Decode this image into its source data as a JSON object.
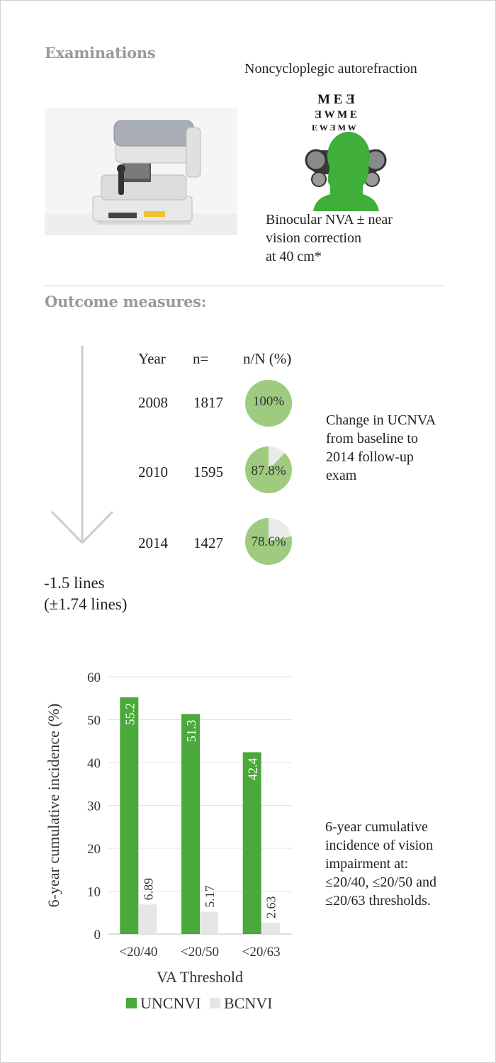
{
  "examinations": {
    "title": "Examinations",
    "autorefraction_label": "Noncycloplegic autorefraction",
    "nva_label_lines": [
      "Binocular NVA ± near",
      "vision correction",
      "at 40 cm*"
    ],
    "eye_chart_rows": [
      "M E Ǝ",
      "Ǝ W M E",
      "E W Ǝ M W"
    ]
  },
  "outcomes": {
    "title": "Outcome measures:",
    "headers": {
      "year": "Year",
      "n": "n=",
      "pct": "n/N (%)"
    },
    "rows": [
      {
        "year": "2008",
        "n": "1817",
        "pct_label": "100%",
        "pct": 100
      },
      {
        "year": "2010",
        "n": "1595",
        "pct_label": "87.8%",
        "pct": 87.8
      },
      {
        "year": "2014",
        "n": "1427",
        "pct_label": "78.6%",
        "pct": 78.6
      }
    ],
    "change_note_lines": [
      "Change in UCNVA",
      "from baseline to",
      "2014 follow-up",
      "exam"
    ],
    "lines_change": [
      "-1.5 lines",
      "(±1.74 lines)"
    ],
    "colors": {
      "pie_fill": "#9ecb7f",
      "pie_remainder": "#ebebeb",
      "arrow": "#cccccc"
    }
  },
  "chart_note_lines": [
    "6-year cumulative",
    "incidence of vision",
    "impairment at:",
    "≤20/40, ≤20/50 and",
    "≤20/63 thresholds."
  ],
  "chart_data": {
    "type": "bar",
    "categories": [
      "<20/40",
      "<20/50",
      "<20/63"
    ],
    "series": [
      {
        "name": "UNCNVI",
        "values": [
          55.2,
          51.3,
          42.4
        ],
        "labels": [
          "55.2",
          "51.3",
          "42.4"
        ],
        "color": "#4aa93a"
      },
      {
        "name": "BCNVI",
        "values": [
          6.89,
          5.17,
          2.63
        ],
        "labels": [
          "6.89",
          "5.17",
          "2.63"
        ],
        "color": "#e6e6e6"
      }
    ],
    "xlabel": "VA Threshold",
    "ylabel": "6-year cumulative incidence (%)",
    "ylim": [
      0,
      60
    ],
    "yticks": [
      0,
      10,
      20,
      30,
      40,
      50,
      60
    ],
    "grid": true,
    "legend": "bottom"
  }
}
